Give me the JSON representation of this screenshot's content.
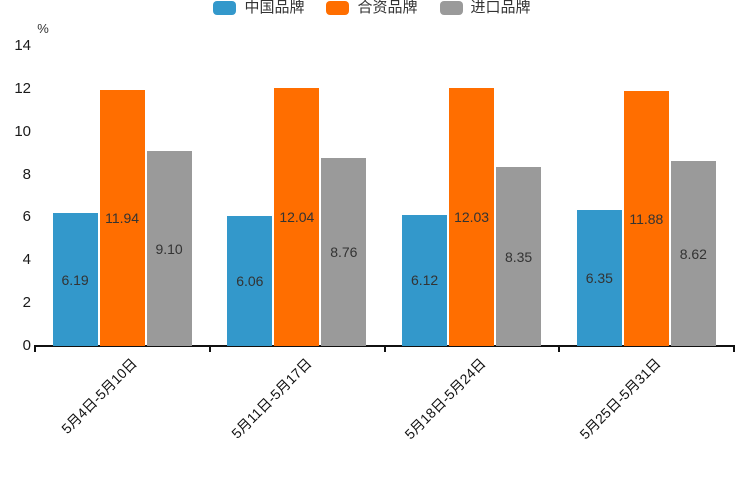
{
  "chart_data": {
    "type": "bar",
    "title": "",
    "unit_label": "%",
    "categories": [
      "5月4日-5月10日",
      "5月11日-5月17日",
      "5月18日-5月24日",
      "5月25日-5月31日"
    ],
    "series": [
      {
        "name": "中国品牌",
        "color": "#3398cb",
        "values": [
          6.19,
          6.06,
          6.12,
          6.35
        ]
      },
      {
        "name": "合资品牌",
        "color": "#ff6e00",
        "values": [
          11.94,
          12.04,
          12.03,
          11.88
        ]
      },
      {
        "name": "进口品牌",
        "color": "#9a9a9a",
        "values": [
          9.1,
          8.76,
          8.35,
          8.62
        ]
      }
    ],
    "ylim": [
      0,
      14
    ],
    "yticks": [
      0,
      2,
      4,
      6,
      8,
      10,
      12,
      14
    ],
    "legend_position": "top-center",
    "grid": false,
    "value_labels": "inside-center",
    "value_label_decimals": 2,
    "xlabel_rotation_deg": 45,
    "colors": {
      "axis": "#111111",
      "value_label_text": "#333333",
      "tick_label_text": "#1a1a1a",
      "background": "#ffffff"
    }
  }
}
